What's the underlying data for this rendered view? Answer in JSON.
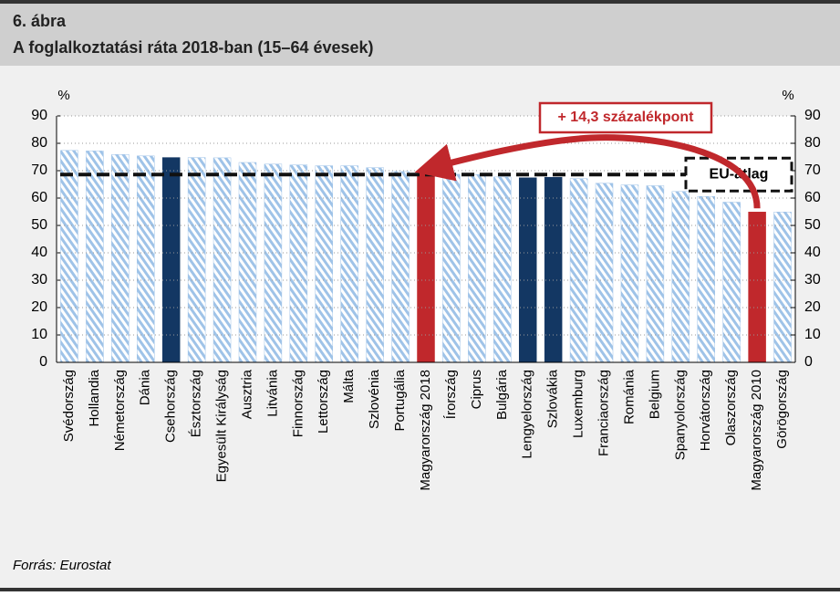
{
  "chart_data": {
    "type": "bar",
    "figure_label": "6. ábra",
    "title": "A foglalkoztatási ráta 2018-ban (15–64 évesek)",
    "y_label": "%",
    "y2_label": "%",
    "source": "Forrás: Eurostat",
    "categories": [
      "Svédország",
      "Hollandia",
      "Németország",
      "Dánia",
      "Csehország",
      "Észtország",
      "Egyesült Királyság",
      "Ausztria",
      "Litvánia",
      "Finnország",
      "Lettország",
      "Málta",
      "Szlovénia",
      "Portugália",
      "Magyarország 2018",
      "Írország",
      "Ciprus",
      "Bulgária",
      "Lengyelország",
      "Szlovákia",
      "Luxemburg",
      "Franciaország",
      "Románia",
      "Belgium",
      "Spanyolország",
      "Horvátország",
      "Olaszország",
      "Magyarország 2010",
      "Görögország"
    ],
    "values": [
      77.4,
      77.2,
      75.9,
      75.4,
      74.8,
      74.8,
      74.7,
      73.0,
      72.4,
      72.1,
      71.8,
      71.8,
      71.1,
      69.7,
      69.2,
      68.7,
      68.6,
      67.7,
      67.4,
      67.6,
      67.1,
      65.4,
      64.8,
      64.5,
      62.4,
      60.6,
      58.5,
      54.9,
      54.9
    ],
    "color": "#c6dcf2",
    "colors": [
      "#c6dcf2",
      "#c6dcf2",
      "#c6dcf2",
      "#c6dcf2",
      "#133763",
      "#c6dcf2",
      "#c6dcf2",
      "#c6dcf2",
      "#c6dcf2",
      "#c6dcf2",
      "#c6dcf2",
      "#c6dcf2",
      "#c6dcf2",
      "#c6dcf2",
      "#c0282c",
      "#c6dcf2",
      "#c6dcf2",
      "#c6dcf2",
      "#133763",
      "#133763",
      "#c6dcf2",
      "#c6dcf2",
      "#c6dcf2",
      "#c6dcf2",
      "#c6dcf2",
      "#c6dcf2",
      "#c6dcf2",
      "#c0282c",
      "#c6dcf2"
    ],
    "eu_average": 68.6,
    "eu_label": "EU-átlag",
    "annotation": "+ 14,3 százalékpont",
    "ylim": [
      0,
      90
    ],
    "yticks": [
      0,
      10,
      20,
      30,
      40,
      50,
      60,
      70,
      80,
      90
    ],
    "y2lim": [
      0,
      90
    ],
    "y2ticks": [
      0,
      10,
      20,
      30,
      40,
      50,
      60,
      70,
      80,
      90
    ],
    "grid": true
  }
}
